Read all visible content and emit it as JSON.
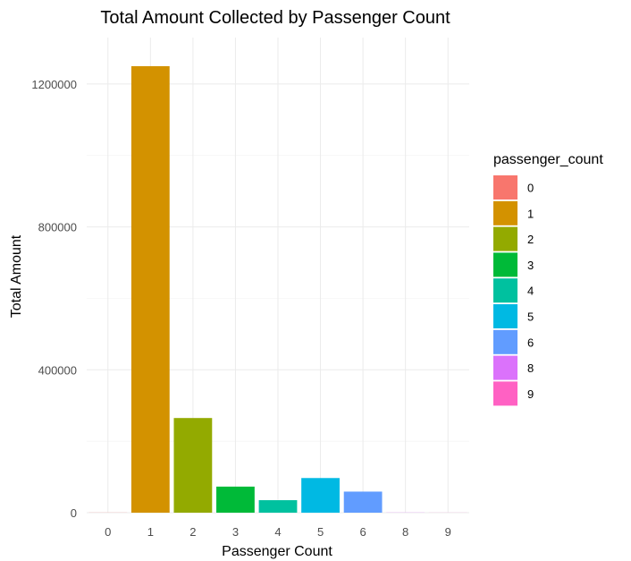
{
  "chart_data": {
    "type": "bar",
    "title": "Total Amount Collected by Passenger Count",
    "xlabel": "Passenger Count",
    "ylabel": "Total Amount",
    "categories": [
      "0",
      "1",
      "2",
      "3",
      "4",
      "5",
      "6",
      "8",
      "9"
    ],
    "values": [
      300,
      1250000,
      265000,
      73000,
      35000,
      97000,
      59000,
      400,
      200
    ],
    "colors": [
      "#F8766D",
      "#D39200",
      "#93AA00",
      "#00BA38",
      "#00C19F",
      "#00B9E3",
      "#619CFF",
      "#DB72FB",
      "#FF61C3"
    ],
    "ylim": [
      0,
      1330000
    ],
    "yticks": [
      0,
      400000,
      800000,
      1200000
    ],
    "ytick_labels": [
      "0",
      "400000",
      "800000",
      "1200000"
    ],
    "grid": true,
    "legend": {
      "title": "passenger_count",
      "placement": "right",
      "entries": [
        "0",
        "1",
        "2",
        "3",
        "4",
        "5",
        "6",
        "8",
        "9"
      ]
    }
  }
}
